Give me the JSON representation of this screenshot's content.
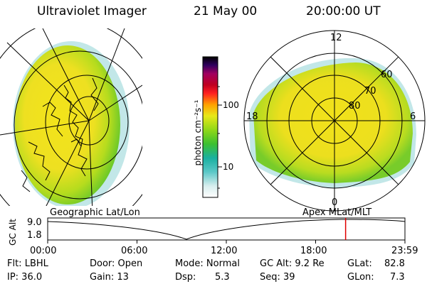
{
  "header": {
    "instrument": "Ultraviolet Imager",
    "date": "21 May 00",
    "time": "20:00:00 UT"
  },
  "colorbar": {
    "label": "photon cm⁻²s⁻¹",
    "ticks": [
      "100",
      "10"
    ]
  },
  "polar": {
    "labels": {
      "top": "12",
      "bottom": "0",
      "left": "18",
      "right": "6",
      "lat60": "60",
      "lat70": "70",
      "lat80": "80"
    }
  },
  "timeline": {
    "left_label": "Geographic Lat/Lon",
    "right_label": "Apex MLat/MLT",
    "axis_title": "GC Alt",
    "y_top": "9.0",
    "y_bottom": "1.8",
    "ticks": [
      "00:00",
      "06:00",
      "12:00",
      "18:00",
      "23:59"
    ],
    "marker_time_hours": 20.0
  },
  "info": {
    "row1": {
      "filter": "Flt: LBHL",
      "door": "Door: Open",
      "mode": "Mode: Normal",
      "gc_alt": "GC Alt: 9.2 Re",
      "glat_label": "GLat:",
      "glat_value": "82.8"
    },
    "row2": {
      "ip": "IP: 36.0",
      "gain": "Gain: 13",
      "dsp_label": "Dsp:",
      "dsp_value": "5.3",
      "seq": "Seq: 39",
      "glon_label": "GLon:",
      "glon_value": "7.3"
    }
  },
  "colors": {
    "marker": "#e00000",
    "aurora_yellow": "#f2e010",
    "aurora_green": "#8fd21c"
  }
}
